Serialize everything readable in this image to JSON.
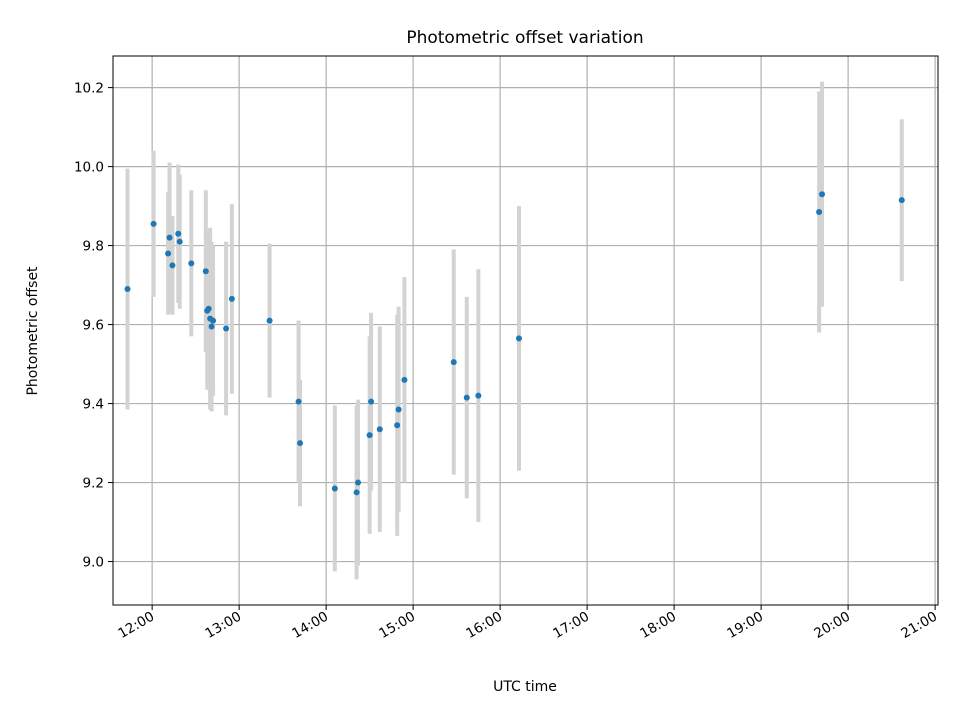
{
  "chart_data": {
    "type": "scatter",
    "title": "Photometric offset variation",
    "xlabel": "UTC time",
    "ylabel": "Photometric offset",
    "x_ticks": [
      "12:00",
      "13:00",
      "14:00",
      "15:00",
      "16:00",
      "17:00",
      "18:00",
      "19:00",
      "20:00",
      "21:00"
    ],
    "y_ticks": [
      "9.0",
      "9.2",
      "9.4",
      "9.6",
      "9.8",
      "10.0",
      "10.2"
    ],
    "xlim": [
      "11:33",
      "21:02"
    ],
    "ylim": [
      8.89,
      10.28
    ],
    "grid": true,
    "colors": {
      "point": "#1f77b4",
      "errorbar": "#d3d3d3",
      "grid": "#b0b0b0"
    },
    "points": [
      {
        "x": "11:43",
        "y": 9.69,
        "err": 0.305
      },
      {
        "x": "12:01",
        "y": 9.855,
        "err": 0.185
      },
      {
        "x": "12:11",
        "y": 9.78,
        "err": 0.155
      },
      {
        "x": "12:12",
        "y": 9.82,
        "err": 0.19
      },
      {
        "x": "12:14",
        "y": 9.75,
        "err": 0.125
      },
      {
        "x": "12:18",
        "y": 9.83,
        "err": 0.175
      },
      {
        "x": "12:19",
        "y": 9.81,
        "err": 0.17
      },
      {
        "x": "12:27",
        "y": 9.755,
        "err": 0.185
      },
      {
        "x": "12:37",
        "y": 9.735,
        "err": 0.205
      },
      {
        "x": "12:38",
        "y": 9.635,
        "err": 0.2
      },
      {
        "x": "12:39",
        "y": 9.64,
        "err": 0.2
      },
      {
        "x": "12:40",
        "y": 9.615,
        "err": 0.23
      },
      {
        "x": "12:41",
        "y": 9.595,
        "err": 0.215
      },
      {
        "x": "12:42",
        "y": 9.61,
        "err": 0.19
      },
      {
        "x": "12:51",
        "y": 9.59,
        "err": 0.22
      },
      {
        "x": "12:55",
        "y": 9.665,
        "err": 0.24
      },
      {
        "x": "13:21",
        "y": 9.61,
        "err": 0.195
      },
      {
        "x": "13:41",
        "y": 9.405,
        "err": 0.205
      },
      {
        "x": "13:42",
        "y": 9.3,
        "err": 0.16
      },
      {
        "x": "14:06",
        "y": 9.185,
        "err": 0.21
      },
      {
        "x": "14:21",
        "y": 9.175,
        "err": 0.22
      },
      {
        "x": "14:22",
        "y": 9.2,
        "err": 0.21
      },
      {
        "x": "14:30",
        "y": 9.32,
        "err": 0.25
      },
      {
        "x": "14:31",
        "y": 9.405,
        "err": 0.225
      },
      {
        "x": "14:37",
        "y": 9.335,
        "err": 0.26
      },
      {
        "x": "14:49",
        "y": 9.345,
        "err": 0.28
      },
      {
        "x": "14:50",
        "y": 9.385,
        "err": 0.26
      },
      {
        "x": "14:54",
        "y": 9.46,
        "err": 0.26
      },
      {
        "x": "15:28",
        "y": 9.505,
        "err": 0.285
      },
      {
        "x": "15:37",
        "y": 9.415,
        "err": 0.255
      },
      {
        "x": "15:45",
        "y": 9.42,
        "err": 0.32
      },
      {
        "x": "16:13",
        "y": 9.565,
        "err": 0.335
      },
      {
        "x": "19:40",
        "y": 9.885,
        "err": 0.305
      },
      {
        "x": "19:42",
        "y": 9.93,
        "err": 0.285
      },
      {
        "x": "20:37",
        "y": 9.915,
        "err": 0.205
      }
    ]
  }
}
